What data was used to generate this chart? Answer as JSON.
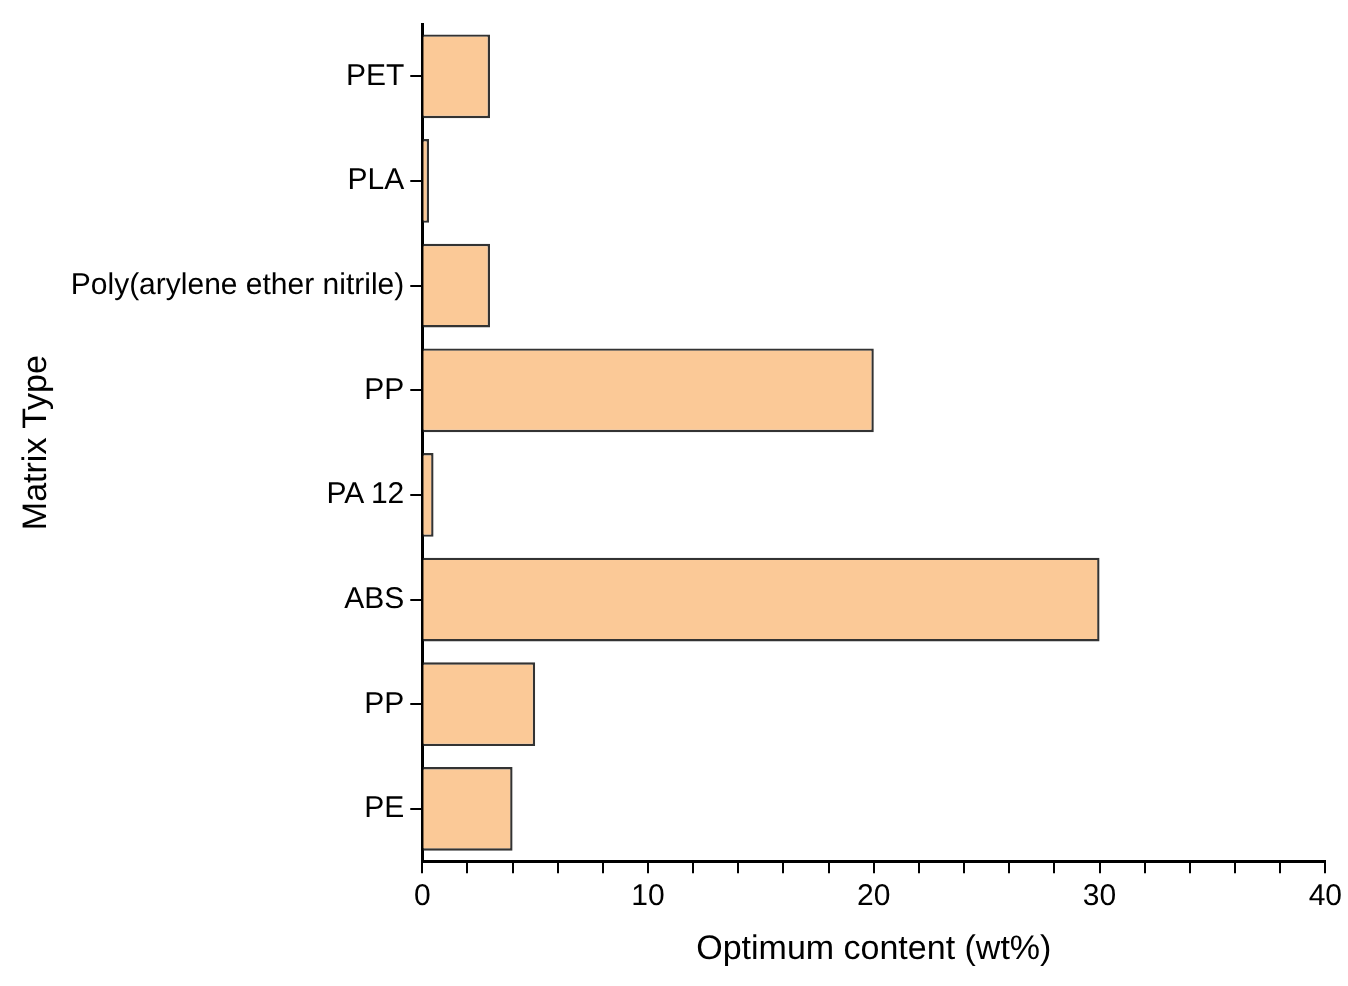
{
  "chart_data": {
    "type": "bar",
    "orientation": "horizontal",
    "xlabel": "Optimum content (wt%)",
    "ylabel": "Matrix Type",
    "categories": [
      "PET",
      "PLA",
      "Poly(arylene ether nitrile)",
      "PP",
      "PA 12",
      "ABS",
      "PP",
      "PE"
    ],
    "values": [
      3,
      0.3,
      3,
      20,
      0.5,
      30,
      5,
      4
    ],
    "color": "#fbc997",
    "xlim": [
      0,
      40
    ],
    "xticks": [
      0,
      {
        "value": 2,
        "label": null
      },
      {
        "value": 4,
        "label": null
      },
      {
        "value": 6,
        "label": null
      },
      {
        "value": 8,
        "label": null
      },
      10,
      {
        "value": 12,
        "label": null
      },
      {
        "value": 14,
        "label": null
      },
      {
        "value": 16,
        "label": null
      },
      {
        "value": 18,
        "label": null
      },
      20,
      {
        "value": 22,
        "label": null
      },
      {
        "value": 24,
        "label": null
      },
      {
        "value": 26,
        "label": null
      },
      {
        "value": 28,
        "label": null
      },
      30,
      {
        "value": 32,
        "label": null
      },
      {
        "value": 34,
        "label": null
      },
      {
        "value": 36,
        "label": null
      },
      {
        "value": 38,
        "label": null
      },
      40
    ],
    "grid": false,
    "legend": false
  }
}
